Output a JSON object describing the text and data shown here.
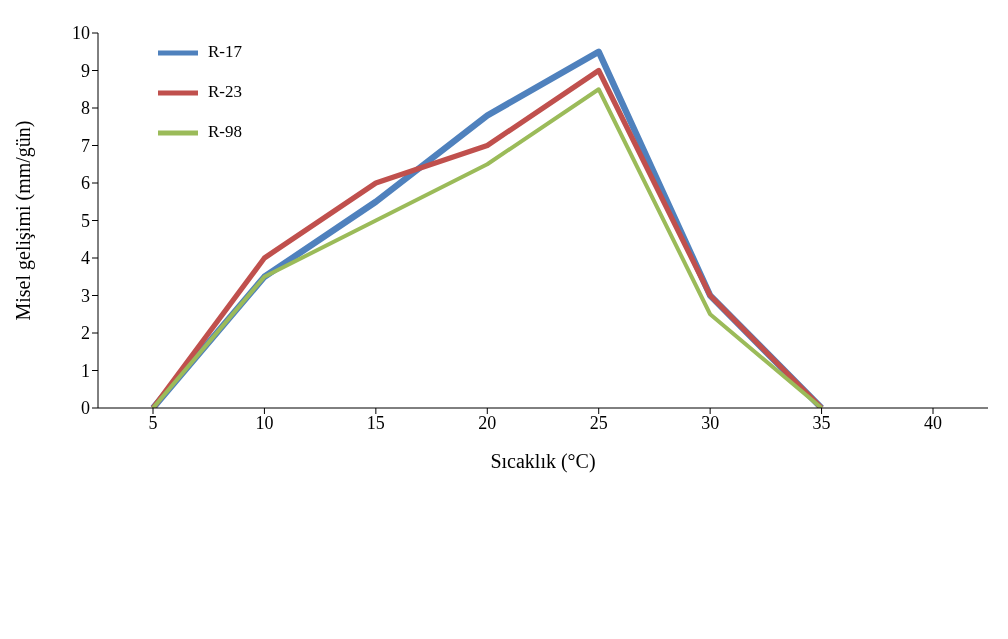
{
  "chart_data": {
    "type": "line",
    "xlabel": "Sıcaklık (°C)",
    "ylabel": "Misel gelişimi (mm/gün)",
    "categories": [
      "5",
      "10",
      "15",
      "20",
      "25",
      "30",
      "35",
      "40"
    ],
    "series": [
      {
        "name": "R-17",
        "color": "#4f81bd",
        "values": [
          0,
          3.5,
          5.5,
          7.8,
          9.5,
          3,
          0,
          null
        ]
      },
      {
        "name": "R-23",
        "color": "#c0504d",
        "values": [
          0,
          4,
          6,
          7,
          9,
          3,
          0,
          null
        ]
      },
      {
        "name": "R-98",
        "color": "#9bbb59",
        "values": [
          0,
          3.5,
          5,
          6.5,
          8.5,
          2.5,
          0,
          null
        ]
      }
    ],
    "ylim": [
      0,
      10
    ],
    "yticks": [
      0,
      1,
      2,
      3,
      4,
      5,
      6,
      7,
      8,
      9,
      10
    ],
    "grid": false,
    "legend": "top left",
    "marker": "none",
    "line_style": "solid"
  }
}
